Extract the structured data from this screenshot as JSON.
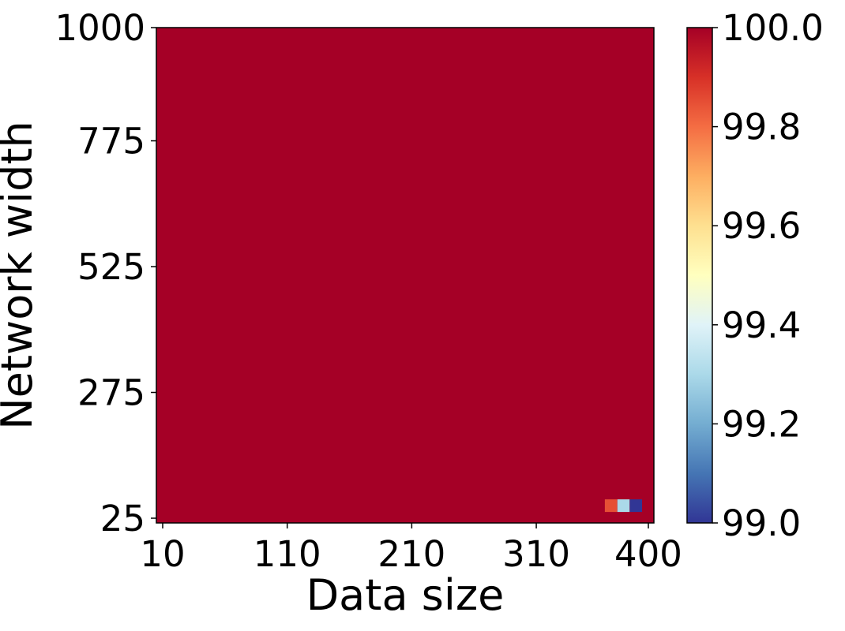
{
  "chart_data": {
    "type": "heatmap",
    "title": "",
    "xlabel": "Data size",
    "ylabel": "Network width",
    "x_ticks": [
      "10",
      "110",
      "210",
      "310",
      "400"
    ],
    "x_tick_values": [
      10,
      110,
      210,
      310,
      400
    ],
    "xlim": [
      10,
      400
    ],
    "y_ticks": [
      "25",
      "275",
      "525",
      "775",
      "1000"
    ],
    "y_tick_values": [
      25,
      275,
      525,
      775,
      1000
    ],
    "ylim": [
      25,
      1000
    ],
    "grid": false,
    "default_value": 100.0,
    "cells": [
      {
        "x": 370,
        "y": 50,
        "value": 99.85
      },
      {
        "x": 380,
        "y": 50,
        "value": 99.3
      },
      {
        "x": 390,
        "y": 50,
        "value": 99.0
      }
    ],
    "colorbar": {
      "colormap": "RdYlBu_r",
      "min": 99.0,
      "max": 100.0,
      "ticks": [
        "99.0",
        "99.2",
        "99.4",
        "99.6",
        "99.8",
        "100.0"
      ],
      "tick_values": [
        99.0,
        99.2,
        99.4,
        99.6,
        99.8,
        100.0
      ]
    }
  }
}
